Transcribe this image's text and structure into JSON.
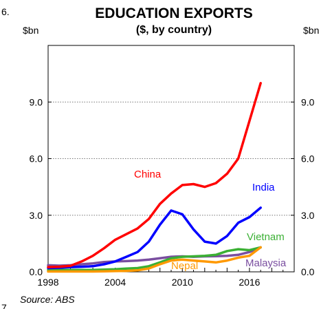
{
  "page": {
    "figure_number": "6.",
    "corner_mark": "7",
    "source": "Source: ABS"
  },
  "chart_data": {
    "type": "line",
    "title": "EDUCATION EXPORTS",
    "subtitle": "($, by country)",
    "ylabel_left": "$bn",
    "ylabel_right": "$bn",
    "xlabel": "",
    "xlim": [
      1998,
      2020
    ],
    "ylim": [
      0,
      12
    ],
    "xticks": [
      1998,
      2004,
      2010,
      2016
    ],
    "yticks": [
      0,
      3,
      6,
      9
    ],
    "ytick_labels": [
      "0.0",
      "3.0",
      "6.0",
      "9.0"
    ],
    "gridlines": [
      3,
      6,
      9
    ],
    "grid": "horizontal dotted",
    "legend": "inline labels",
    "series": [
      {
        "name": "China",
        "color": "#ff0000",
        "x": [
          1998,
          1999,
          2000,
          2001,
          2002,
          2003,
          2004,
          2005,
          2006,
          2007,
          2008,
          2009,
          2010,
          2011,
          2012,
          2013,
          2014,
          2015,
          2016,
          2017
        ],
        "y": [
          0.25,
          0.27,
          0.32,
          0.55,
          0.85,
          1.25,
          1.7,
          2.0,
          2.3,
          2.8,
          3.6,
          4.15,
          4.6,
          4.65,
          4.5,
          4.7,
          5.2,
          6.0,
          8.0,
          10.0
        ]
      },
      {
        "name": "India",
        "color": "#0000ff",
        "x": [
          1998,
          1999,
          2000,
          2001,
          2002,
          2003,
          2004,
          2005,
          2006,
          2007,
          2008,
          2009,
          2010,
          2011,
          2012,
          2013,
          2014,
          2015,
          2016,
          2017
        ],
        "y": [
          0.2,
          0.22,
          0.25,
          0.27,
          0.3,
          0.4,
          0.55,
          0.8,
          1.05,
          1.6,
          2.5,
          3.25,
          3.05,
          2.25,
          1.6,
          1.5,
          1.9,
          2.6,
          2.9,
          3.4
        ]
      },
      {
        "name": "Vietnam",
        "color": "#3bb034",
        "x": [
          1998,
          1999,
          2000,
          2001,
          2002,
          2003,
          2004,
          2005,
          2006,
          2007,
          2008,
          2009,
          2010,
          2011,
          2012,
          2013,
          2014,
          2015,
          2016,
          2017
        ],
        "y": [
          0.1,
          0.1,
          0.1,
          0.1,
          0.1,
          0.12,
          0.14,
          0.17,
          0.2,
          0.3,
          0.5,
          0.72,
          0.8,
          0.82,
          0.85,
          0.9,
          1.1,
          1.2,
          1.15,
          1.3
        ]
      },
      {
        "name": "Nepal",
        "color": "#ff9900",
        "x": [
          1998,
          1999,
          2000,
          2001,
          2002,
          2003,
          2004,
          2005,
          2006,
          2007,
          2008,
          2009,
          2010,
          2011,
          2012,
          2013,
          2014,
          2015,
          2016,
          2017
        ],
        "y": [
          0.02,
          0.02,
          0.02,
          0.02,
          0.02,
          0.03,
          0.04,
          0.05,
          0.08,
          0.18,
          0.4,
          0.6,
          0.65,
          0.6,
          0.55,
          0.5,
          0.6,
          0.75,
          0.85,
          1.3
        ]
      },
      {
        "name": "Malaysia",
        "color": "#7a4ea0",
        "x": [
          1998,
          1999,
          2000,
          2001,
          2002,
          2003,
          2004,
          2005,
          2006,
          2007,
          2008,
          2009,
          2010,
          2011,
          2012,
          2013,
          2014,
          2015,
          2016,
          2017
        ],
        "y": [
          0.35,
          0.33,
          0.35,
          0.4,
          0.45,
          0.52,
          0.55,
          0.57,
          0.6,
          0.65,
          0.72,
          0.8,
          0.82,
          0.8,
          0.82,
          0.83,
          0.85,
          0.9,
          1.05,
          1.3
        ]
      }
    ]
  }
}
